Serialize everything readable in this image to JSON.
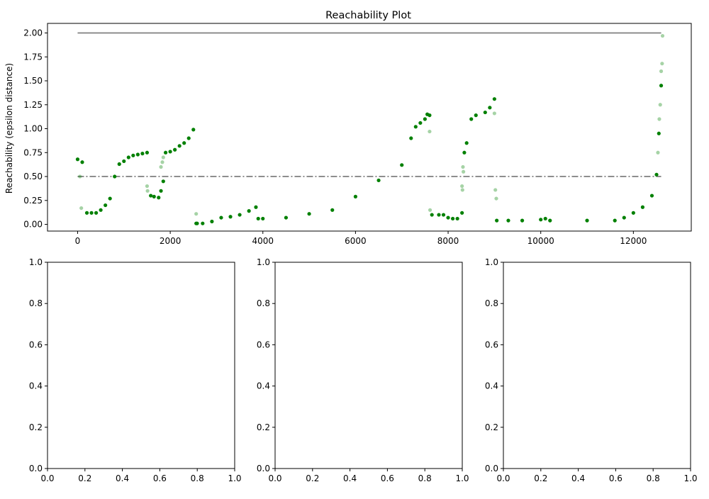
{
  "chart_data": [
    {
      "type": "scatter",
      "title": "Reachability Plot",
      "xlabel": "",
      "ylabel": "Reachability (epsilon distance)",
      "xlim": [
        -650,
        13250
      ],
      "ylim": [
        -0.07,
        2.1
      ],
      "xticks": [
        "0",
        "2000",
        "4000",
        "6000",
        "8000",
        "10000",
        "12000"
      ],
      "yticks": [
        "0.00",
        "0.25",
        "0.50",
        "0.75",
        "1.00",
        "1.25",
        "1.50",
        "1.75",
        "2.00"
      ],
      "grid": false,
      "colors": {
        "points": "#008000",
        "noise_points": "#008000",
        "reference_lines": "#7f7f7f"
      },
      "reference_lines": [
        {
          "y": 2.0,
          "style": "solid"
        },
        {
          "y": 0.5,
          "style": "dash-dot"
        }
      ],
      "series": [
        {
          "role": "cluster-points",
          "x": [
            0,
            100,
            200,
            300,
            400,
            500,
            600,
            700,
            800,
            900,
            1000,
            1100,
            1200,
            1300,
            1400,
            1500,
            1580,
            1650,
            1750,
            1800,
            1850,
            1900,
            2000,
            2100,
            2200,
            2300,
            2400,
            2500,
            2560,
            2580,
            2700,
            2900,
            3100,
            3300,
            3500,
            3700,
            3850,
            3900,
            4000,
            4500,
            5000,
            5500,
            6000,
            6500,
            7000,
            7200,
            7300,
            7400,
            7500,
            7550,
            7600,
            7650,
            7800,
            7900,
            8000,
            8100,
            8200,
            8300,
            8350,
            8400,
            8500,
            8600,
            8800,
            8900,
            9000,
            9050,
            9300,
            9600,
            10000,
            10100,
            10200,
            11000,
            11600,
            11800,
            12000,
            12200,
            12400,
            12500,
            12550,
            12600
          ],
          "y": [
            0.68,
            0.65,
            0.12,
            0.12,
            0.12,
            0.15,
            0.2,
            0.27,
            0.5,
            0.63,
            0.66,
            0.7,
            0.72,
            0.73,
            0.74,
            0.75,
            0.3,
            0.29,
            0.28,
            0.35,
            0.45,
            0.75,
            0.76,
            0.78,
            0.82,
            0.85,
            0.9,
            0.99,
            0.01,
            0.01,
            0.01,
            0.03,
            0.07,
            0.08,
            0.1,
            0.14,
            0.18,
            0.06,
            0.06,
            0.07,
            0.11,
            0.15,
            0.29,
            0.46,
            0.62,
            0.9,
            1.02,
            1.06,
            1.1,
            1.15,
            1.14,
            0.1,
            0.1,
            0.1,
            0.07,
            0.06,
            0.06,
            0.12,
            0.75,
            0.85,
            1.1,
            1.14,
            1.17,
            1.22,
            1.31,
            0.04,
            0.04,
            0.04,
            0.05,
            0.06,
            0.04,
            0.04,
            0.04,
            0.07,
            0.12,
            0.18,
            0.3,
            0.52,
            0.95,
            1.45
          ]
        },
        {
          "role": "noise-points",
          "x": [
            50,
            80,
            1500,
            1510,
            1800,
            1830,
            1850,
            2560,
            7600,
            7610,
            8300,
            8310,
            8320,
            8330,
            9000,
            9020,
            9040,
            12530,
            12560,
            12580,
            12600,
            12620,
            12630
          ],
          "y": [
            0.5,
            0.17,
            0.4,
            0.35,
            0.6,
            0.65,
            0.7,
            0.11,
            0.97,
            0.15,
            0.4,
            0.36,
            0.6,
            0.55,
            1.16,
            0.36,
            0.27,
            0.75,
            1.1,
            1.25,
            1.6,
            1.68,
            1.97
          ]
        }
      ]
    },
    {
      "type": "scatter",
      "title": "",
      "xlim": [
        0,
        1
      ],
      "ylim": [
        0,
        1
      ],
      "xticks": [
        "0.0",
        "0.2",
        "0.4",
        "0.6",
        "0.8",
        "1.0"
      ],
      "yticks": [
        "0.0",
        "0.2",
        "0.4",
        "0.6",
        "0.8",
        "1.0"
      ],
      "series": []
    },
    {
      "type": "scatter",
      "title": "",
      "xlim": [
        0,
        1
      ],
      "ylim": [
        0,
        1
      ],
      "xticks": [
        "0.0",
        "0.2",
        "0.4",
        "0.6",
        "0.8",
        "1.0"
      ],
      "yticks": [
        "0.0",
        "0.2",
        "0.4",
        "0.6",
        "0.8",
        "1.0"
      ],
      "series": []
    },
    {
      "type": "scatter",
      "title": "",
      "xlim": [
        0,
        1
      ],
      "ylim": [
        0,
        1
      ],
      "xticks": [
        "0.0",
        "0.2",
        "0.4",
        "0.6",
        "0.8",
        "1.0"
      ],
      "yticks": [
        "0.0",
        "0.2",
        "0.4",
        "0.6",
        "0.8",
        "1.0"
      ],
      "series": []
    }
  ]
}
